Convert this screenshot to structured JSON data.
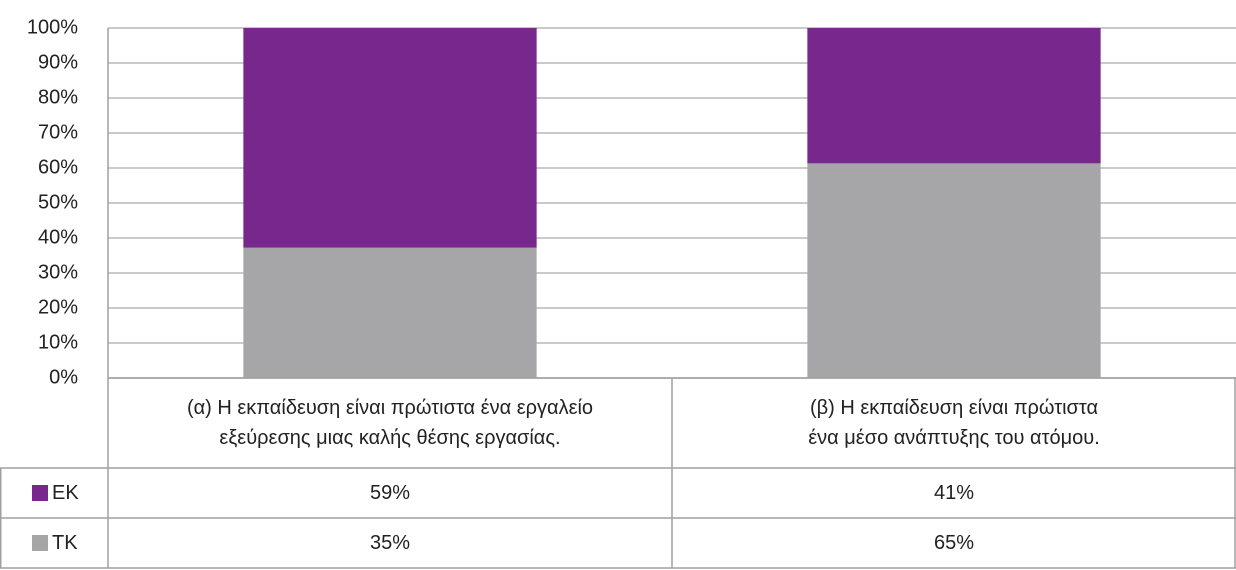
{
  "chart_data": {
    "type": "bar",
    "stacking": "percent",
    "grid": true,
    "categories": [
      "(α) Η εκπαίδευση είναι πρώτιστα ένα εργαλείο\nεξεύρεσης μιας καλής θέσης εργασίας.",
      "(β) Η εκπαίδευση είναι πρώτιστα\nένα μέσο ανάπτυξης του ατόμου."
    ],
    "series": [
      {
        "name": "ΕΚ",
        "color": "#78288c",
        "values": [
          59,
          41
        ],
        "value_labels": [
          "59%",
          "41%"
        ]
      },
      {
        "name": "ΤΚ",
        "color": "#a6a6a8",
        "values": [
          35,
          65
        ],
        "value_labels": [
          "35%",
          "65%"
        ]
      }
    ],
    "ylim": [
      0,
      100
    ],
    "yticks": [
      {
        "value": 0,
        "label": "0%"
      },
      {
        "value": 10,
        "label": "10%"
      },
      {
        "value": 20,
        "label": "20%"
      },
      {
        "value": 30,
        "label": "30%"
      },
      {
        "value": 40,
        "label": "40%"
      },
      {
        "value": 50,
        "label": "50%"
      },
      {
        "value": 60,
        "label": "60%"
      },
      {
        "value": 70,
        "label": "70%"
      },
      {
        "value": 80,
        "label": "80%"
      },
      {
        "value": 90,
        "label": "90%"
      },
      {
        "value": 100,
        "label": "100%"
      }
    ]
  }
}
